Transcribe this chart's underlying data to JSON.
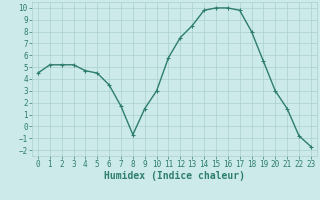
{
  "x": [
    0,
    1,
    2,
    3,
    4,
    5,
    6,
    7,
    8,
    9,
    10,
    11,
    12,
    13,
    14,
    15,
    16,
    17,
    18,
    19,
    20,
    21,
    22,
    23
  ],
  "y": [
    4.5,
    5.2,
    5.2,
    5.2,
    4.7,
    4.5,
    3.5,
    1.7,
    -0.7,
    1.5,
    3.0,
    5.8,
    7.5,
    8.5,
    9.8,
    10.0,
    10.0,
    9.8,
    8.0,
    5.5,
    3.0,
    1.5,
    -0.8,
    -1.7
  ],
  "line_color": "#2e7d6e",
  "marker": "+",
  "marker_size": 3,
  "xlabel": "Humidex (Indice chaleur)",
  "xlabel_fontsize": 7,
  "xlim": [
    -0.5,
    23.5
  ],
  "ylim": [
    -2.5,
    10.5
  ],
  "yticks": [
    -2,
    -1,
    0,
    1,
    2,
    3,
    4,
    5,
    6,
    7,
    8,
    9,
    10
  ],
  "xticks": [
    0,
    1,
    2,
    3,
    4,
    5,
    6,
    7,
    8,
    9,
    10,
    11,
    12,
    13,
    14,
    15,
    16,
    17,
    18,
    19,
    20,
    21,
    22,
    23
  ],
  "bg_color": "#cceaea",
  "grid_color": "#aacfcf",
  "tick_label_fontsize": 5.5,
  "line_width": 1.0
}
